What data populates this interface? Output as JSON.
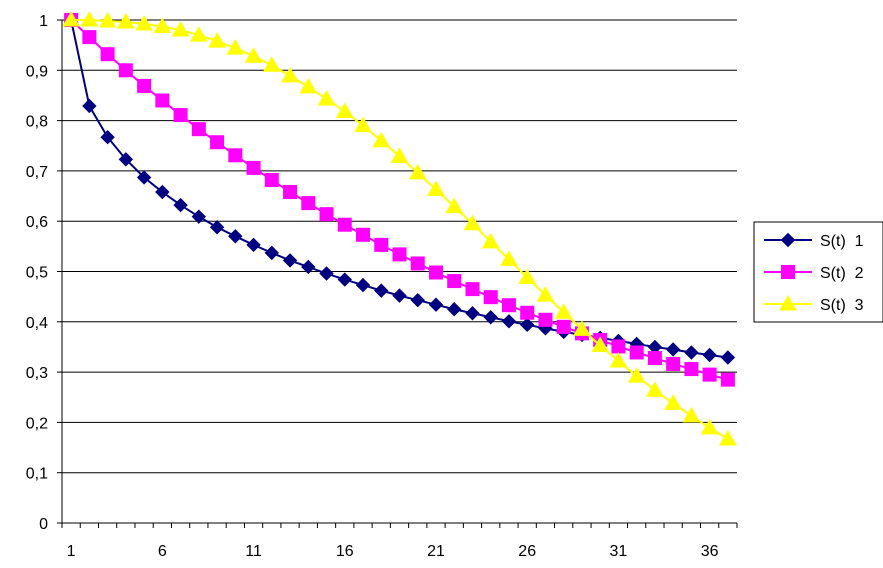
{
  "chart_data": {
    "type": "line",
    "title": "",
    "xlabel": "",
    "ylabel": "",
    "x": [
      1,
      2,
      3,
      4,
      5,
      6,
      7,
      8,
      9,
      10,
      11,
      12,
      13,
      14,
      15,
      16,
      17,
      18,
      19,
      20,
      21,
      22,
      23,
      24,
      25,
      26,
      27,
      28,
      29,
      30,
      31,
      32,
      33,
      34,
      35,
      36,
      37
    ],
    "x_tick_labels": [
      "1",
      "6",
      "11",
      "16",
      "21",
      "26",
      "31",
      "36"
    ],
    "x_tick_values": [
      1,
      6,
      11,
      16,
      21,
      26,
      31,
      36
    ],
    "y_tick_labels": [
      "0",
      "0,1",
      "0,2",
      "0,3",
      "0,4",
      "0,5",
      "0,6",
      "0,7",
      "0,8",
      "0,9",
      "1"
    ],
    "y_tick_values": [
      0,
      0.1,
      0.2,
      0.3,
      0.4,
      0.5,
      0.6,
      0.7,
      0.8,
      0.9,
      1
    ],
    "ylim": [
      0,
      1
    ],
    "xlim": [
      1,
      37
    ],
    "grid": "horizontal",
    "legend_position": "right",
    "series": [
      {
        "name": "S(t)  1",
        "color": "#000080",
        "marker": "diamond",
        "values": [
          1.0,
          0.829,
          0.767,
          0.723,
          0.687,
          0.658,
          0.632,
          0.609,
          0.588,
          0.57,
          0.553,
          0.537,
          0.522,
          0.509,
          0.496,
          0.484,
          0.473,
          0.462,
          0.452,
          0.443,
          0.434,
          0.425,
          0.417,
          0.409,
          0.401,
          0.394,
          0.387,
          0.38,
          0.374,
          0.368,
          0.362,
          0.356,
          0.35,
          0.345,
          0.339,
          0.334,
          0.329
        ]
      },
      {
        "name": "S(t)  2",
        "color": "#FF00FF",
        "marker": "square",
        "values": [
          1.0,
          0.966,
          0.932,
          0.9,
          0.869,
          0.84,
          0.811,
          0.783,
          0.757,
          0.731,
          0.706,
          0.682,
          0.658,
          0.636,
          0.614,
          0.593,
          0.573,
          0.553,
          0.534,
          0.516,
          0.498,
          0.481,
          0.465,
          0.449,
          0.433,
          0.418,
          0.404,
          0.39,
          0.377,
          0.364,
          0.351,
          0.339,
          0.328,
          0.316,
          0.306,
          0.295,
          0.285
        ]
      },
      {
        "name": "S(t)  3",
        "color": "#FFFF00",
        "marker": "triangle",
        "values": [
          1.0,
          1.0,
          0.998,
          0.996,
          0.992,
          0.987,
          0.98,
          0.97,
          0.958,
          0.944,
          0.928,
          0.91,
          0.889,
          0.867,
          0.843,
          0.818,
          0.79,
          0.76,
          0.729,
          0.696,
          0.663,
          0.629,
          0.595,
          0.559,
          0.524,
          0.488,
          0.453,
          0.419,
          0.385,
          0.353,
          0.322,
          0.292,
          0.264,
          0.238,
          0.213,
          0.189,
          0.167
        ]
      }
    ]
  }
}
